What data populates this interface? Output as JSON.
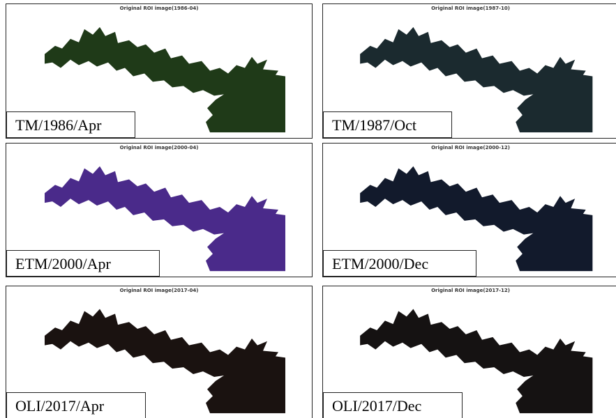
{
  "panels": [
    {
      "title": "Original ROI image(1986-04)",
      "label": "TM/1986/Apr"
    },
    {
      "title": "Original ROI image(1987-10)",
      "label": "TM/1987/Oct"
    },
    {
      "title": "Original ROI image(2000-04)",
      "label": "ETM/2000/Apr"
    },
    {
      "title": "Original ROI image(2000-12)",
      "label": "ETM/2000/Dec"
    },
    {
      "title": "Original ROI image(2017-04)",
      "label": "OLI/2017/Apr"
    },
    {
      "title": "Original ROI image(2017-12)",
      "label": "OLI/2017/Dec"
    }
  ]
}
